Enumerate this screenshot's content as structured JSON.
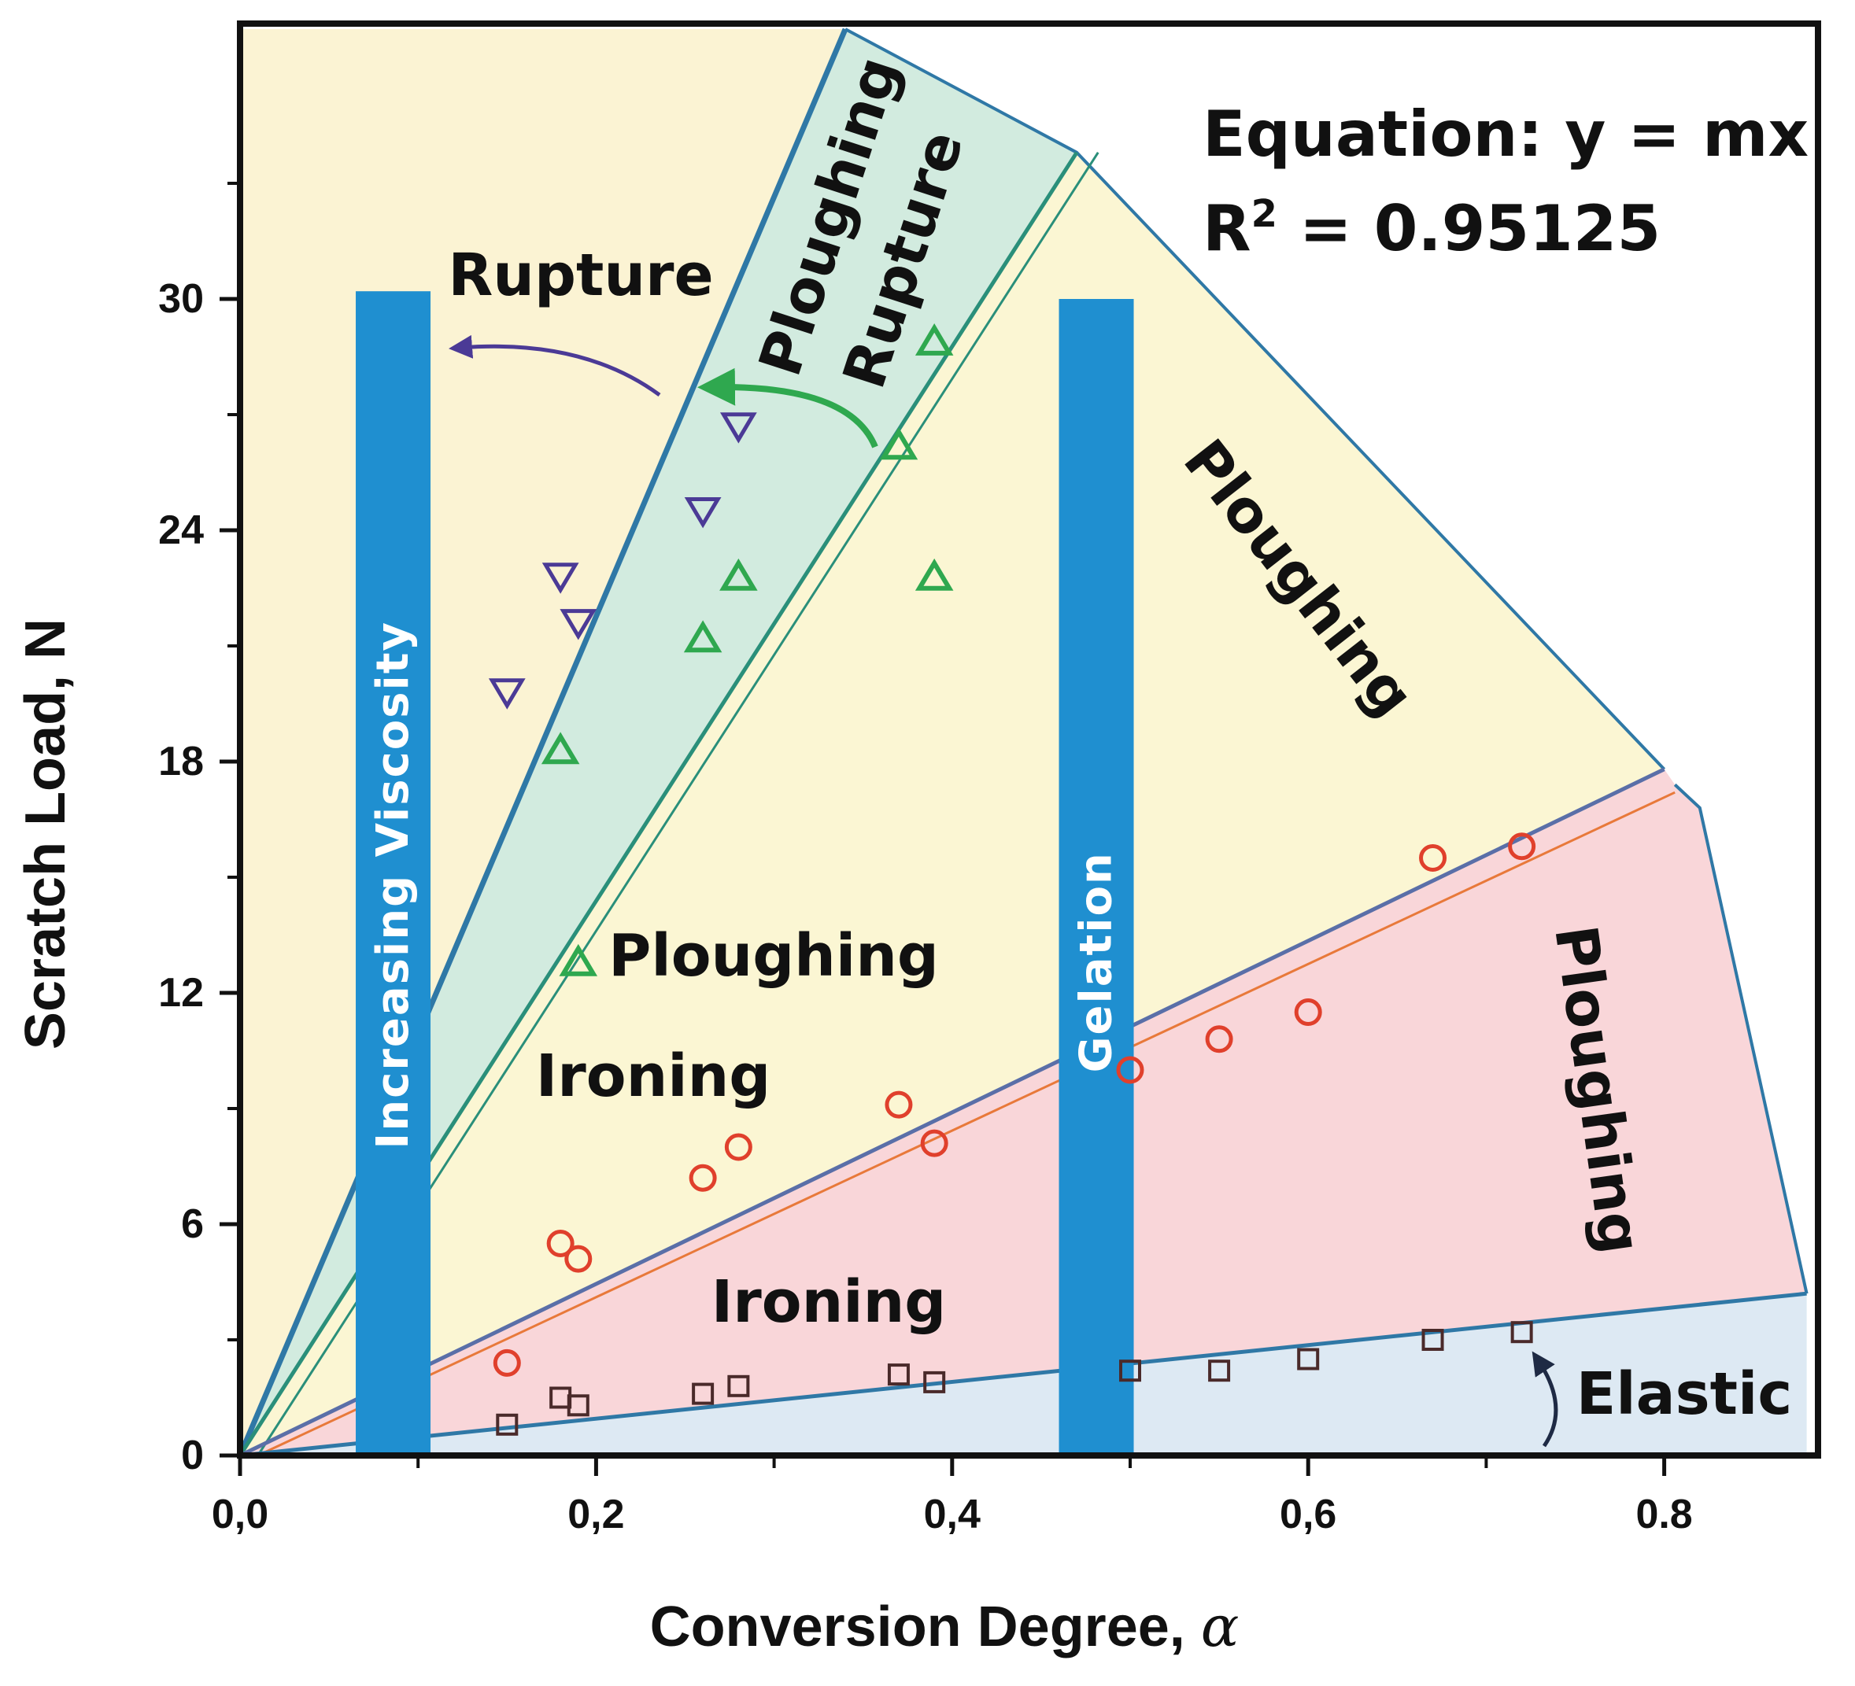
{
  "chart_data": {
    "type": "scatter",
    "xlabel": "Conversion Degree, ",
    "xlabel_symbol": "α",
    "ylabel": "Scratch Load, N",
    "xlim": [
      0,
      0.88
    ],
    "ylim": [
      0,
      37
    ],
    "x_ticks": [
      0.0,
      0.2,
      0.4,
      0.6,
      0.8
    ],
    "x_tick_labels": [
      "0,0",
      "0,2",
      "0,4",
      "0,6",
      "0.8"
    ],
    "y_ticks": [
      0,
      6,
      12,
      18,
      24,
      30
    ],
    "y_tick_labels": [
      "0",
      "6",
      "12",
      "18",
      "24",
      "30"
    ],
    "equation": {
      "line1": "Equation: y = mx",
      "line2_prefix": "R",
      "line2_sup": "2",
      "line2_suffix": " = 0.95125"
    },
    "regions": [
      {
        "name": "rupture",
        "label": "Rupture",
        "color": "#fbf3d3"
      },
      {
        "name": "ploughing-rupture",
        "label_line1": "Ploughing",
        "label_line2": "Rupture",
        "color": "#d2ebdf"
      },
      {
        "name": "ploughing-upper",
        "label": "Ploughing",
        "color": "#fbf6d3"
      },
      {
        "name": "ploughing-mid",
        "label": "Ploughing",
        "color": "#fbf6d3"
      },
      {
        "name": "ironing-upper",
        "label": "Ironing",
        "color": "#fbf6d3"
      },
      {
        "name": "ironing-lower",
        "label": "Ironing",
        "color": "#f9d6d9"
      },
      {
        "name": "ploughing-right",
        "label": "Ploughing",
        "color": "#f9d6d9"
      },
      {
        "name": "elastic",
        "label": "Elastic",
        "color": "#dde9f3"
      }
    ],
    "bars": [
      {
        "name": "increasing-viscosity",
        "label": "Increasing Viscosity",
        "x": [
          0.065,
          0.107
        ],
        "y_top": 30.2,
        "color": "#1f8fd0"
      },
      {
        "name": "gelation",
        "label": "Gelation",
        "x": [
          0.46,
          0.502
        ],
        "y_top": 30.0,
        "color": "#1f8fd0"
      }
    ],
    "series": [
      {
        "marker": "triangle-down",
        "color": "#4b3a96",
        "points": [
          [
            0.15,
            19.8
          ],
          [
            0.18,
            22.8
          ],
          [
            0.19,
            21.6
          ],
          [
            0.26,
            24.5
          ],
          [
            0.28,
            26.7
          ]
        ]
      },
      {
        "marker": "triangle-up",
        "color": "#2fa84f",
        "points": [
          [
            0.18,
            18.3
          ],
          [
            0.19,
            12.8
          ],
          [
            0.26,
            21.2
          ],
          [
            0.28,
            22.8
          ],
          [
            0.37,
            26.2
          ],
          [
            0.39,
            22.8
          ],
          [
            0.39,
            28.9
          ]
        ]
      },
      {
        "marker": "circle",
        "color": "#e0402c",
        "points": [
          [
            0.15,
            2.4
          ],
          [
            0.18,
            5.5
          ],
          [
            0.19,
            5.1
          ],
          [
            0.26,
            7.2
          ],
          [
            0.28,
            8.0
          ],
          [
            0.37,
            9.1
          ],
          [
            0.39,
            8.1
          ],
          [
            0.5,
            10.0
          ],
          [
            0.55,
            10.8
          ],
          [
            0.6,
            11.5
          ],
          [
            0.67,
            15.5
          ],
          [
            0.72,
            15.8
          ]
        ]
      },
      {
        "marker": "square",
        "color": "#4a2a2a",
        "points": [
          [
            0.15,
            0.8
          ],
          [
            0.18,
            1.5
          ],
          [
            0.19,
            1.3
          ],
          [
            0.26,
            1.6
          ],
          [
            0.28,
            1.8
          ],
          [
            0.37,
            2.1
          ],
          [
            0.39,
            1.9
          ],
          [
            0.5,
            2.2
          ],
          [
            0.55,
            2.2
          ],
          [
            0.6,
            2.5
          ],
          [
            0.67,
            3.0
          ],
          [
            0.72,
            3.2
          ]
        ]
      }
    ],
    "boundaries": [
      {
        "from": [
          0.0,
          0.0
        ],
        "to": [
          0.34,
          37.0
        ],
        "color": "#2f78a6"
      },
      {
        "from": [
          0.0,
          0.0
        ],
        "to": [
          0.47,
          33.8
        ],
        "color": "#2a8f7a"
      },
      {
        "from": [
          0.0,
          0.0
        ],
        "to": [
          0.8,
          17.8
        ],
        "color": "#5a6fa8"
      },
      {
        "from": [
          0.0,
          0.0
        ],
        "to": [
          0.88,
          4.2
        ],
        "color": "#2f78a6"
      }
    ]
  }
}
